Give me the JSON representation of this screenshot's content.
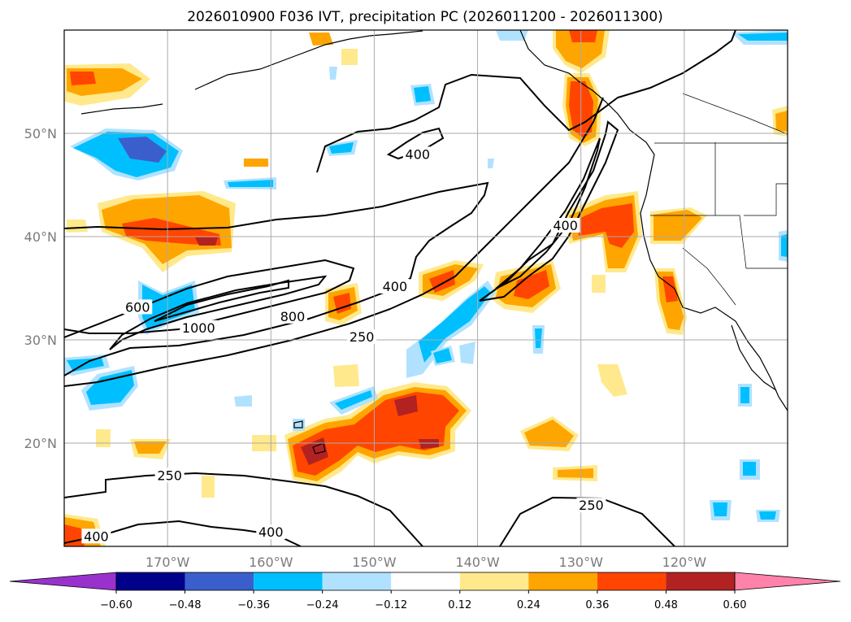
{
  "chart_data": {
    "type": "map-contour",
    "title": "2026010900 F036 IVT, precipitation PC (2026011200 - 2026011300)",
    "lon_range": [
      -180,
      -110
    ],
    "lat_range": [
      10,
      60
    ],
    "gridlines": true,
    "x_ticks": [
      {
        "lon": -170,
        "label": "170°W"
      },
      {
        "lon": -160,
        "label": "160°W"
      },
      {
        "lon": -150,
        "label": "150°W"
      },
      {
        "lon": -140,
        "label": "140°W"
      },
      {
        "lon": -130,
        "label": "130°W"
      },
      {
        "lon": -120,
        "label": "120°W"
      }
    ],
    "y_ticks": [
      {
        "lat": 20,
        "label": "20°N"
      },
      {
        "lat": 30,
        "label": "30°N"
      },
      {
        "lat": 40,
        "label": "40°N"
      },
      {
        "lat": 50,
        "label": "50°N"
      }
    ],
    "ivt_contour_labels": [
      {
        "text": "400",
        "lon": -145.8,
        "lat": 48.0
      },
      {
        "text": "400",
        "lon": -131.5,
        "lat": 41.1
      },
      {
        "text": "600",
        "lon": -172.9,
        "lat": 33.2
      },
      {
        "text": "1000",
        "lon": -167.0,
        "lat": 31.2
      },
      {
        "text": "800",
        "lon": -157.9,
        "lat": 32.3
      },
      {
        "text": "400",
        "lon": -148.0,
        "lat": 35.2
      },
      {
        "text": "250",
        "lon": -151.2,
        "lat": 30.3
      },
      {
        "text": "250",
        "lon": -169.8,
        "lat": 16.9
      },
      {
        "text": "400",
        "lon": -176.9,
        "lat": 11.0
      },
      {
        "text": "400",
        "lon": -160.0,
        "lat": 11.4
      },
      {
        "text": "250",
        "lon": -129.0,
        "lat": 14.0
      }
    ],
    "colorbar": {
      "levels": [
        -0.6,
        -0.48,
        -0.36,
        -0.24,
        -0.12,
        0.12,
        0.24,
        0.36,
        0.48,
        0.6
      ],
      "tick_labels": [
        "−0.60",
        "−0.48",
        "−0.36",
        "−0.24",
        "−0.12",
        "0.12",
        "0.24",
        "0.36",
        "0.48",
        "0.60"
      ],
      "colors": [
        "#9932cc",
        "#00008b",
        "#3a5fcd",
        "#00bfff",
        "#b0e2ff",
        "#ffffff",
        "#ffe98c",
        "#ffa500",
        "#ff4500",
        "#b22222",
        "#ff82ab"
      ],
      "extend": "both"
    }
  }
}
